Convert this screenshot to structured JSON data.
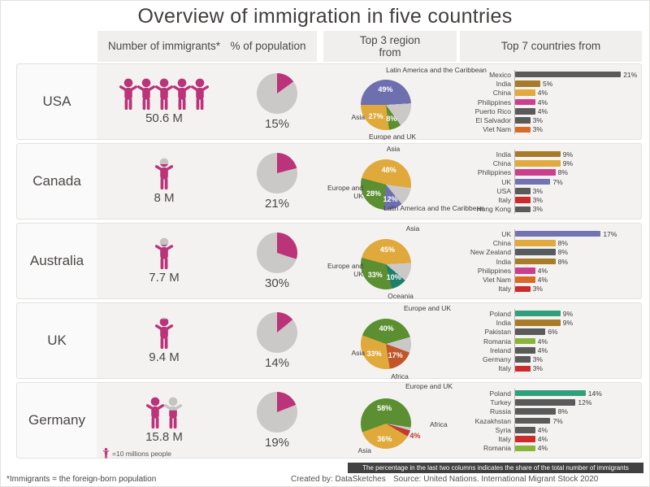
{
  "title": "Overview of immigration in five countries",
  "columns": {
    "immigrants": "Number of immigrants*",
    "population": "% of population",
    "regions": "Top 3 region from",
    "countries": "Top 7 countries from"
  },
  "colors": {
    "accent_magenta": "#bb3378",
    "pie_gray": "#cbc9c8",
    "asia_gold": "#e0a93c",
    "europe_green": "#5c8f31",
    "latam_purple": "#6e6fae",
    "oceania_teal": "#1f7d6b",
    "africa_orange": "#c0562a",
    "africa_red": "#c13a2e",
    "bar_gray": "#5a5a5a",
    "note_bar_bg": "#414141"
  },
  "legend_text": "=10 millions people",
  "note": "The percentage in the last two columns indicates the share of the total number of immigrants",
  "footnote": "*Immigrants = the foreign-born population",
  "created_by": "Created by: DataSketches",
  "source": "Source: United Nations. International Migrant Stock 2020",
  "chart_data": [
    {
      "country": "USA",
      "immigrants_label": "50.6 M",
      "immigrants_millions": 50.6,
      "pct_of_population": 15,
      "top_regions": {
        "type": "pie",
        "slices": [
          {
            "label": "Latin America and the Caribbean",
            "pct": 49,
            "color": "#6e6fae"
          },
          {
            "label": "",
            "pct": 16,
            "color": "#cbc9c8"
          },
          {
            "label": "Europe and UK",
            "pct": 8,
            "color": "#5c8f31"
          },
          {
            "label": "Asia",
            "pct": 27,
            "color": "#e0a93c"
          }
        ]
      },
      "top_countries": {
        "type": "bar",
        "categories": [
          "Mexico",
          "India",
          "China",
          "Philippines",
          "Puerto Rico",
          "El Salvador",
          "Viet Nam"
        ],
        "values": [
          21,
          5,
          4,
          4,
          4,
          3,
          3
        ],
        "colors": [
          "#5a5a5a",
          "#a87b28",
          "#e0aa3e",
          "#cb3f8d",
          "#5a5a5a",
          "#5a5a5a",
          "#d96a28"
        ]
      }
    },
    {
      "country": "Canada",
      "immigrants_label": "8 M",
      "immigrants_millions": 8,
      "pct_of_population": 21,
      "top_regions": {
        "type": "pie",
        "slices": [
          {
            "label": "Asia",
            "pct": 48,
            "color": "#e0a93c"
          },
          {
            "label": "",
            "pct": 12,
            "color": "#cbc9c8"
          },
          {
            "label": "Latin America and the Caribbean",
            "pct": 12,
            "color": "#6e6fae"
          },
          {
            "label": "Europe and UK",
            "pct": 28,
            "color": "#5c8f31"
          }
        ]
      },
      "top_countries": {
        "type": "bar",
        "categories": [
          "India",
          "China",
          "Philippines",
          "UK",
          "USA",
          "Italy",
          "Hong Kong"
        ],
        "values": [
          9,
          9,
          8,
          7,
          3,
          3,
          3
        ],
        "colors": [
          "#a87b28",
          "#e0aa3e",
          "#cb3f8d",
          "#7273b0",
          "#5a5a5a",
          "#cc2b2b",
          "#5a5a5a"
        ]
      }
    },
    {
      "country": "Australia",
      "immigrants_label": "7.7 M",
      "immigrants_millions": 7.7,
      "pct_of_population": 30,
      "top_regions": {
        "type": "pie",
        "slices": [
          {
            "label": "Asia",
            "pct": 45,
            "color": "#e0a93c"
          },
          {
            "label": "",
            "pct": 12,
            "color": "#cbc9c8"
          },
          {
            "label": "Oceania",
            "pct": 10,
            "color": "#1f7d6b"
          },
          {
            "label": "Europe and UK",
            "pct": 33,
            "color": "#5c8f31"
          }
        ]
      },
      "top_countries": {
        "type": "bar",
        "categories": [
          "UK",
          "China",
          "New Zealand",
          "India",
          "Philippines",
          "Viet Nam",
          "Italy"
        ],
        "values": [
          17,
          8,
          8,
          8,
          4,
          4,
          3
        ],
        "colors": [
          "#7273b0",
          "#e0aa3e",
          "#565b60",
          "#a87b28",
          "#cb3f8d",
          "#d96a28",
          "#cc2b2b"
        ]
      }
    },
    {
      "country": "UK",
      "immigrants_label": "9.4 M",
      "immigrants_millions": 9.4,
      "pct_of_population": 14,
      "top_regions": {
        "type": "pie",
        "slices": [
          {
            "label": "Europe and UK",
            "pct": 40,
            "color": "#5c8f31"
          },
          {
            "label": "",
            "pct": 10,
            "color": "#cbc9c8"
          },
          {
            "label": "Africa",
            "pct": 17,
            "color": "#c0562a"
          },
          {
            "label": "Asia",
            "pct": 33,
            "color": "#e0a93c"
          }
        ]
      },
      "top_countries": {
        "type": "bar",
        "categories": [
          "Poland",
          "India",
          "Pakistan",
          "Romania",
          "Ireland",
          "Germany",
          "Italy"
        ],
        "values": [
          9,
          9,
          6,
          4,
          4,
          3,
          3
        ],
        "colors": [
          "#2f9f7c",
          "#a87b28",
          "#5a5a5a",
          "#8ab33c",
          "#5a5a5a",
          "#5a5a5a",
          "#cc2b2b"
        ]
      }
    },
    {
      "country": "Germany",
      "immigrants_label": "15.8 M",
      "immigrants_millions": 15.8,
      "pct_of_population": 19,
      "top_regions": {
        "type": "pie",
        "slices": [
          {
            "label": "Europe and UK",
            "pct": 58,
            "color": "#5c8f31"
          },
          {
            "label": "",
            "pct": 2,
            "color": "#cbc9c8"
          },
          {
            "label": "Africa",
            "pct": 4,
            "color": "#c13a2e"
          },
          {
            "label": "Asia",
            "pct": 36,
            "color": "#e0a93c"
          }
        ]
      },
      "top_countries": {
        "type": "bar",
        "categories": [
          "Poland",
          "Turkey",
          "Russia",
          "Kazakhstan",
          "Syria",
          "Italy",
          "Romania"
        ],
        "values": [
          14,
          12,
          8,
          7,
          4,
          4,
          4
        ],
        "colors": [
          "#2f9f7c",
          "#5a5a5a",
          "#5a5a5a",
          "#5a5a5a",
          "#5a5a5a",
          "#cc2b2b",
          "#8ab33c"
        ]
      }
    }
  ]
}
